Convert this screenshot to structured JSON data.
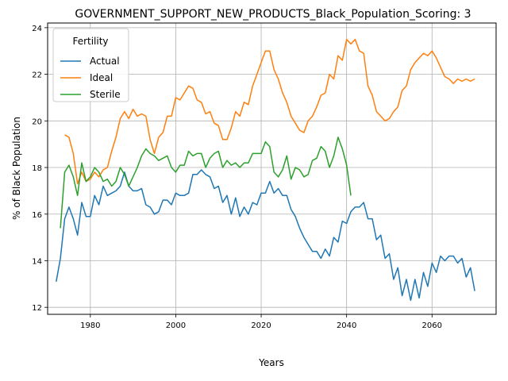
{
  "chart_data": {
    "type": "line",
    "title": "GOVERNMENT_SUPPORT_NEW_PRODUCTS_Black_Population_Scoring: 3",
    "xlabel": "Years",
    "ylabel": "% of Black Population",
    "xlim": [
      1970,
      2075
    ],
    "ylim": [
      11.7,
      24.2
    ],
    "xticks": [
      1980,
      2000,
      2020,
      2040,
      2060
    ],
    "yticks": [
      12,
      14,
      16,
      18,
      20,
      22,
      24
    ],
    "grid": true,
    "legend": {
      "title": "Fertility",
      "placement": "top-left"
    },
    "series": [
      {
        "name": "Actual",
        "color": "#1f77b4",
        "x": [
          1972,
          1973,
          1974,
          1975,
          1976,
          1977,
          1978,
          1979,
          1980,
          1981,
          1982,
          1983,
          1984,
          1985,
          1986,
          1987,
          1988,
          1989,
          1990,
          1991,
          1992,
          1993,
          1994,
          1995,
          1996,
          1997,
          1998,
          1999,
          2000,
          2001,
          2002,
          2003,
          2004,
          2005,
          2006,
          2007,
          2008,
          2009,
          2010,
          2011,
          2012,
          2013,
          2014,
          2015,
          2016,
          2017,
          2018,
          2019,
          2020,
          2021,
          2022,
          2023,
          2024,
          2025,
          2026,
          2027,
          2028,
          2029,
          2030,
          2031,
          2032,
          2033,
          2034,
          2035,
          2036,
          2037,
          2038,
          2039,
          2040,
          2041,
          2042,
          2043,
          2044,
          2045,
          2046,
          2047,
          2048,
          2049,
          2050,
          2051,
          2052,
          2053,
          2054,
          2055,
          2056,
          2057,
          2058,
          2059,
          2060,
          2061,
          2062,
          2063,
          2064,
          2065,
          2066,
          2067,
          2068,
          2069,
          2070
        ],
        "y": [
          13.1,
          14.1,
          15.8,
          16.3,
          15.8,
          15.1,
          16.5,
          15.9,
          15.9,
          16.8,
          16.4,
          17.2,
          16.8,
          16.9,
          17.0,
          17.2,
          17.8,
          17.2,
          17.0,
          17.0,
          17.1,
          16.4,
          16.3,
          16.0,
          16.1,
          16.6,
          16.6,
          16.4,
          16.9,
          16.8,
          16.8,
          16.9,
          17.7,
          17.7,
          17.9,
          17.7,
          17.6,
          17.1,
          17.2,
          16.5,
          16.8,
          16.0,
          16.7,
          15.9,
          16.3,
          16.0,
          16.5,
          16.4,
          16.9,
          16.9,
          17.4,
          16.9,
          17.1,
          16.8,
          16.8,
          16.2,
          15.9,
          15.4,
          15.0,
          14.7,
          14.4,
          14.4,
          14.1,
          14.5,
          14.2,
          15.0,
          14.8,
          15.7,
          15.6,
          16.1,
          16.3,
          16.3,
          16.5,
          15.8,
          15.8,
          14.9,
          15.1,
          14.1,
          14.3,
          13.2,
          13.7,
          12.5,
          13.2,
          12.3,
          13.2,
          12.4,
          13.5,
          12.9,
          13.9,
          13.5,
          14.2,
          14.0,
          14.2,
          14.2,
          13.9,
          14.1,
          13.3,
          13.7,
          12.7
        ]
      },
      {
        "name": "Ideal",
        "color": "#ff7f0e",
        "x": [
          1974,
          1975,
          1976,
          1977,
          1978,
          1979,
          1980,
          1981,
          1982,
          1983,
          1984,
          1985,
          1986,
          1987,
          1988,
          1989,
          1990,
          1991,
          1992,
          1993,
          1994,
          1995,
          1996,
          1997,
          1998,
          1999,
          2000,
          2001,
          2002,
          2003,
          2004,
          2005,
          2006,
          2007,
          2008,
          2009,
          2010,
          2011,
          2012,
          2013,
          2014,
          2015,
          2016,
          2017,
          2018,
          2019,
          2020,
          2021,
          2022,
          2023,
          2024,
          2025,
          2026,
          2027,
          2028,
          2029,
          2030,
          2031,
          2032,
          2033,
          2034,
          2035,
          2036,
          2037,
          2038,
          2039,
          2040,
          2041,
          2042,
          2043,
          2044,
          2045,
          2046,
          2047,
          2048,
          2049,
          2050,
          2051,
          2052,
          2053,
          2054,
          2055,
          2056,
          2057,
          2058,
          2059,
          2060,
          2061,
          2062,
          2063,
          2064,
          2065,
          2066,
          2067,
          2068,
          2069,
          2070
        ],
        "y": [
          19.4,
          19.3,
          18.6,
          17.3,
          17.8,
          17.4,
          17.5,
          17.8,
          17.6,
          17.9,
          18.0,
          18.7,
          19.3,
          20.1,
          20.4,
          20.1,
          20.5,
          20.2,
          20.3,
          20.2,
          19.2,
          18.6,
          19.3,
          19.5,
          20.2,
          20.2,
          21.0,
          20.9,
          21.2,
          21.5,
          21.4,
          20.9,
          20.8,
          20.3,
          20.4,
          19.9,
          19.8,
          19.2,
          19.2,
          19.7,
          20.4,
          20.2,
          20.8,
          20.7,
          21.5,
          22.0,
          22.5,
          23.0,
          23.0,
          22.2,
          21.8,
          21.2,
          20.8,
          20.2,
          19.9,
          19.6,
          19.5,
          20.0,
          20.2,
          20.6,
          21.1,
          21.2,
          22.0,
          21.8,
          22.8,
          22.6,
          23.5,
          23.3,
          23.5,
          23.0,
          22.9,
          21.5,
          21.1,
          20.4,
          20.2,
          20.0,
          20.1,
          20.4,
          20.6,
          21.3,
          21.5,
          22.2,
          22.5,
          22.7,
          22.9,
          22.8,
          23.0,
          22.7,
          22.3,
          21.9,
          21.8,
          21.6,
          21.8,
          21.7,
          21.8,
          21.7,
          21.8
        ]
      },
      {
        "name": "Sterile",
        "color": "#2ca02c",
        "x": [
          1973,
          1974,
          1975,
          1976,
          1977,
          1978,
          1979,
          1980,
          1981,
          1982,
          1983,
          1984,
          1985,
          1986,
          1987,
          1988,
          1989,
          1990,
          1991,
          1992,
          1993,
          1994,
          1995,
          1996,
          1997,
          1998,
          1999,
          2000,
          2001,
          2002,
          2003,
          2004,
          2005,
          2006,
          2007,
          2008,
          2009,
          2010,
          2011,
          2012,
          2013,
          2014,
          2015,
          2016,
          2017,
          2018,
          2019,
          2020,
          2021,
          2022,
          2023,
          2024,
          2025,
          2026,
          2027,
          2028,
          2029,
          2030,
          2031,
          2032,
          2033,
          2034,
          2035,
          2036,
          2037,
          2038,
          2039,
          2040,
          2041
        ],
        "y": [
          15.4,
          17.8,
          18.1,
          17.6,
          16.8,
          18.2,
          17.4,
          17.6,
          18.0,
          17.8,
          17.4,
          17.5,
          17.2,
          17.4,
          18.0,
          17.7,
          17.2,
          17.6,
          18.0,
          18.5,
          18.8,
          18.6,
          18.5,
          18.3,
          18.4,
          18.5,
          18.0,
          17.8,
          18.1,
          18.1,
          18.7,
          18.5,
          18.6,
          18.6,
          18.0,
          18.4,
          18.6,
          18.7,
          18.0,
          18.3,
          18.1,
          18.2,
          18.0,
          18.2,
          18.2,
          18.6,
          18.6,
          18.6,
          19.1,
          18.9,
          17.8,
          17.6,
          17.9,
          18.5,
          17.5,
          18.0,
          17.9,
          17.6,
          17.7,
          18.3,
          18.4,
          18.9,
          18.7,
          18.0,
          18.5,
          19.3,
          18.8,
          18.1,
          16.8
        ]
      }
    ]
  }
}
